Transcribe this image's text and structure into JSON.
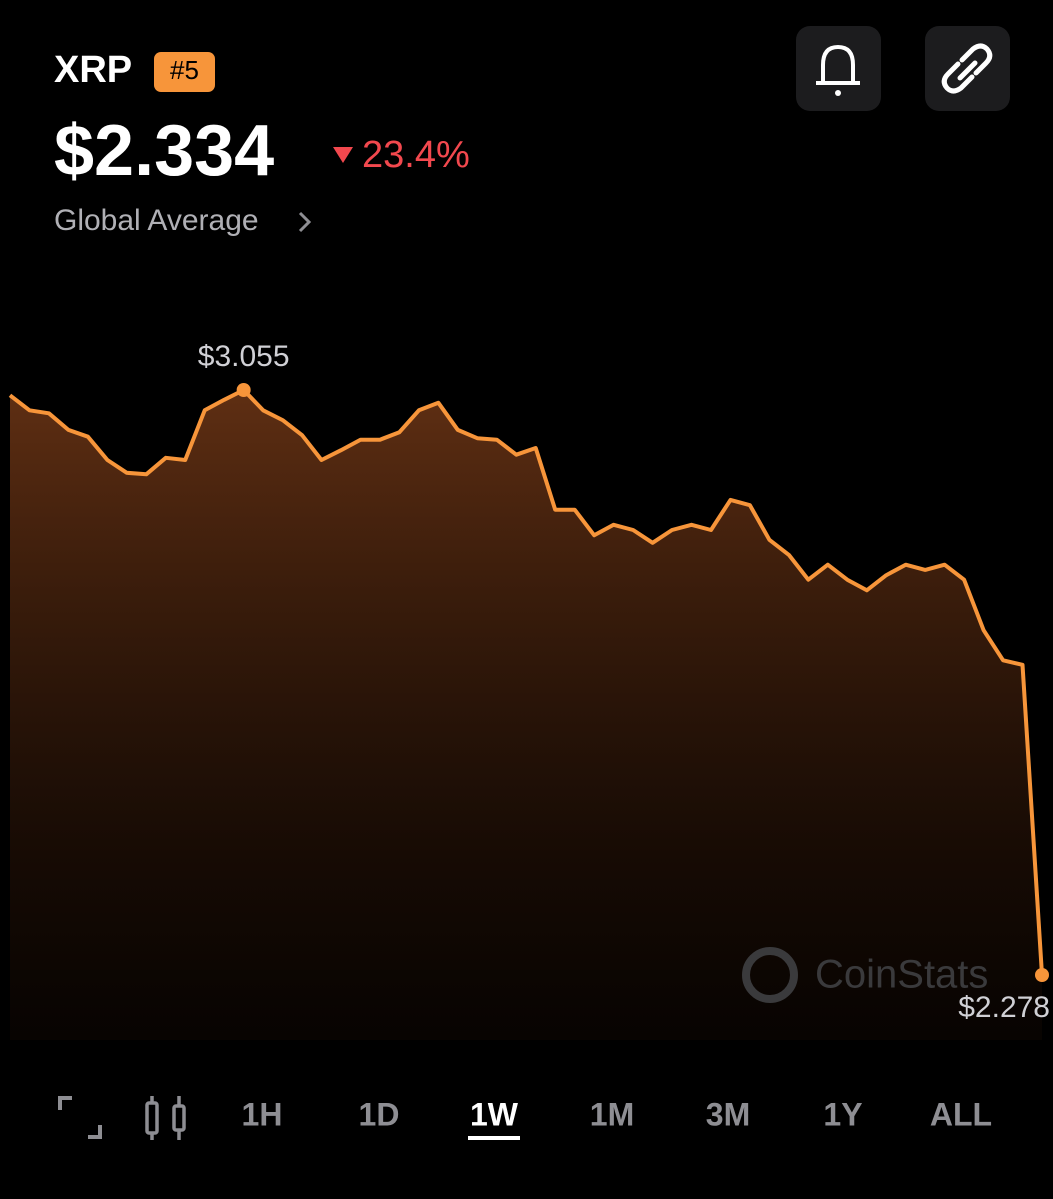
{
  "header": {
    "symbol": "XRP",
    "rank": "#5",
    "price": "$2.334",
    "change": "23.4%",
    "source": "Global Average"
  },
  "chart_data": {
    "type": "line",
    "color": "#f7953a",
    "values": [
      3.048,
      3.028,
      3.024,
      3.002,
      2.993,
      2.962,
      2.945,
      2.943,
      2.965,
      2.962,
      3.028,
      3.042,
      3.055,
      3.028,
      3.015,
      2.995,
      2.962,
      2.975,
      2.989,
      2.989,
      2.999,
      3.028,
      3.038,
      3.002,
      2.991,
      2.989,
      2.969,
      2.978,
      2.896,
      2.896,
      2.862,
      2.876,
      2.869,
      2.852,
      2.869,
      2.876,
      2.869,
      2.909,
      2.902,
      2.856,
      2.836,
      2.803,
      2.823,
      2.803,
      2.789,
      2.809,
      2.823,
      2.816,
      2.823,
      2.803,
      2.736,
      2.696,
      2.69,
      2.278
    ],
    "value_labels": [
      null,
      null,
      null,
      null,
      null,
      null,
      null,
      null,
      null,
      null,
      null,
      null,
      "$3.055",
      null,
      null,
      null,
      null,
      null,
      null,
      null,
      null,
      null,
      null,
      null,
      null,
      null,
      null,
      null,
      null,
      null,
      null,
      null,
      null,
      null,
      null,
      null,
      null,
      null,
      null,
      null,
      null,
      null,
      null,
      null,
      null,
      null,
      null,
      null,
      null,
      null,
      null,
      null,
      null,
      "$2.278"
    ]
  },
  "watermark": "CoinStats",
  "ranges": [
    {
      "label": "1H"
    },
    {
      "label": "1D"
    },
    {
      "label": "1W",
      "selected": true
    },
    {
      "label": "1M"
    },
    {
      "label": "3M"
    },
    {
      "label": "1Y"
    },
    {
      "label": "ALL"
    }
  ]
}
